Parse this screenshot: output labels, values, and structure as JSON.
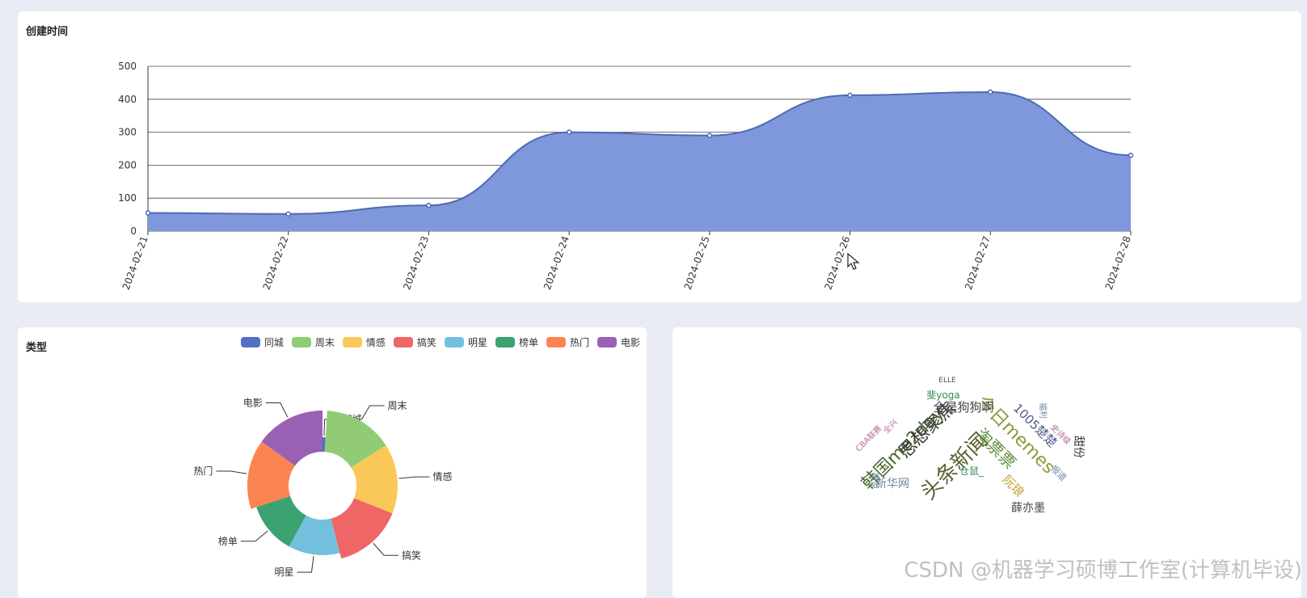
{
  "top_chart": {
    "title": "创建时间"
  },
  "type_chart": {
    "title": "类型"
  },
  "watermark": "CSDN @机器学习硕博工作室(计算机毕设)",
  "chart_data": [
    {
      "type": "area",
      "title": "创建时间",
      "x": [
        "2024-02-21",
        "2024-02-22",
        "2024-02-23",
        "2024-02-24",
        "2024-02-25",
        "2024-02-26",
        "2024-02-27",
        "2024-02-28"
      ],
      "series": [
        {
          "values": [
            55,
            52,
            78,
            300,
            290,
            412,
            422,
            230
          ]
        }
      ],
      "ylim": [
        0,
        500
      ],
      "yticks": [
        0,
        100,
        200,
        300,
        400,
        500
      ],
      "grid": true,
      "color": "#7f98db",
      "line_color": "#4f69b4"
    },
    {
      "type": "pie",
      "title": "类型",
      "legend_position": "top-right",
      "categories": [
        "同城",
        "周末",
        "情感",
        "搞笑",
        "明星",
        "榜单",
        "热门",
        "电影"
      ],
      "colors": [
        "#5470c6",
        "#91cc75",
        "#fac858",
        "#ee6666",
        "#73c0de",
        "#3ba272",
        "#fc8452",
        "#9a60b4"
      ],
      "values": [
        1,
        15,
        15,
        15,
        12,
        12,
        15,
        15
      ]
    },
    {
      "type": "table",
      "words": [
        {
          "text": "头条新闻",
          "color": "#5c5c2e"
        },
        {
          "text": "韩国me2day",
          "color": "#4a6a2a"
        },
        {
          "text": "今日memes",
          "color": "#8a9a3a"
        },
        {
          "text": "思想聚焦",
          "color": "#3a3a3a"
        },
        {
          "text": "淘票票",
          "color": "#5f8f3f"
        },
        {
          "text": "1005楚楚",
          "color": "#4a5a8a"
        },
        {
          "text": "全是狗狗啊",
          "color": "#444444"
        },
        {
          "text": "新华网",
          "color": "#6a8a9a"
        },
        {
          "text": "薛亦墨",
          "color": "#444444"
        },
        {
          "text": "阮琅",
          "color": "#c0a030"
        },
        {
          "text": "斐yoga",
          "color": "#2f8f4f"
        },
        {
          "text": "仓鼠_",
          "color": "#3a8a5a"
        },
        {
          "text": "CBA联赛",
          "color": "#b06a9a"
        },
        {
          "text": "全兴",
          "color": "#b06a9a"
        },
        {
          "text": "史诗级",
          "color": "#b06a9a"
        },
        {
          "text": "ELLE",
          "color": "#555555"
        },
        {
          "text": "甜份",
          "color": "#333333"
        },
        {
          "text": "报道",
          "color": "#6a8aaa"
        },
        {
          "text": "图说",
          "color": "#6a8aaa"
        },
        {
          "text": "福利",
          "color": "#6a8aaa"
        }
      ]
    }
  ]
}
